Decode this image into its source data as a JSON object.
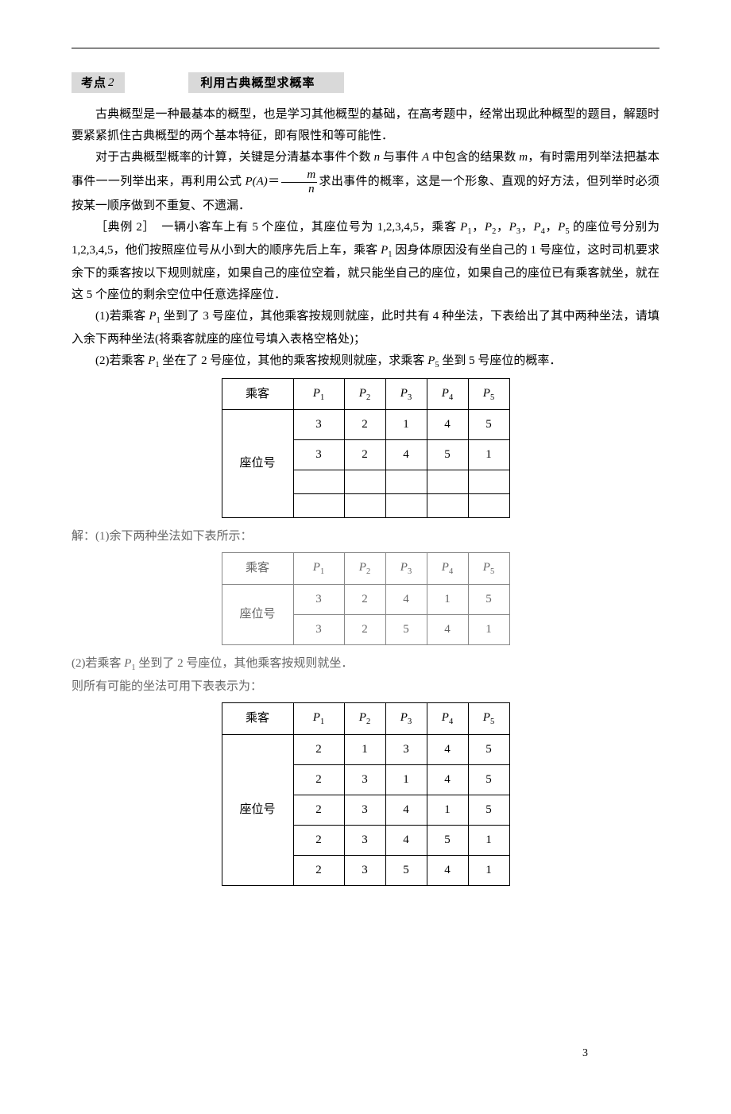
{
  "header": {
    "kd_label": "考点",
    "kd_num": "2",
    "kd_title": "利用古典概型求概率"
  },
  "paras": {
    "p1": "古典概型是一种最基本的概型，也是学习其他概型的基础，在高考题中，经常出现此种概型的题目，解题时要紧紧抓住古典概型的两个基本特征，即有限性和等可能性．",
    "p2a": "对于古典概型概率的计算，关键是分清基本事件个数 ",
    "p2b": " 与事件 ",
    "p2c": " 中包含的结果数 ",
    "p2d": "，有时需用列举法把基本事件一一列举出来，再利用公式 ",
    "p2e": "求出事件的概率，这是一个形象、直观的好方法，但列举时必须按某一顺序做到不重复、不遗漏．",
    "ex_label": "［典例 2］",
    "ex_a": "　一辆小客车上有 5 个座位，其座位号为 1,2,3,4,5，乘客 ",
    "ex_b": " 的座位号分别为 1,2,3,4,5，他们按照座位号从小到大的顺序先后上车，乘客 ",
    "ex_c": " 因身体原因没有坐自己的 1 号座位，这时司机要求余下的乘客按以下规则就座，如果自己的座位空着，就只能坐自己的座位，如果自己的座位已有乘客就坐，就在这 5 个座位的剩余空位中任意选择座位．",
    "q1": "(1)若乘客 ",
    "q1b": " 坐到了 3 号座位，其他乘客按规则就座，此时共有 4 种坐法，下表给出了其中两种坐法，请填入余下两种坐法(将乘客就座的座位号填入表格空格处)；",
    "q2": "(2)若乘客 ",
    "q2b": " 坐在了 2 号座位，其他的乘客按规则就座，求乘客 ",
    "q2c": " 坐到 5 号座位的概率．",
    "ans1": "解：(1)余下两种坐法如下表所示：",
    "ans2a": "(2)若乘客 ",
    "ans2b": " 坐到了 2 号座位，其他乘客按规则就坐．",
    "ans3": "则所有可能的坐法可用下表表示为："
  },
  "sym": {
    "n": "n",
    "A": "A",
    "m": "m",
    "PA": "P(A)",
    "P1": "P",
    "s1": "1",
    "P2": "P",
    "s2": "2",
    "P3": "P",
    "s3": "3",
    "P4": "P",
    "s4": "4",
    "P5": "P",
    "s5": "5",
    "comma": "，"
  },
  "table1": {
    "h0": "乘客",
    "h_seat": "座位号",
    "r1": [
      "3",
      "2",
      "1",
      "4",
      "5"
    ],
    "r2": [
      "3",
      "2",
      "4",
      "5",
      "1"
    ]
  },
  "table2": {
    "h0": "乘客",
    "h_seat": "座位号",
    "r1": [
      "3",
      "2",
      "4",
      "1",
      "5"
    ],
    "r2": [
      "3",
      "2",
      "5",
      "4",
      "1"
    ]
  },
  "table3": {
    "h0": "乘客",
    "h_seat": "座位号",
    "rows": [
      [
        "2",
        "1",
        "3",
        "4",
        "5"
      ],
      [
        "2",
        "3",
        "1",
        "4",
        "5"
      ],
      [
        "2",
        "3",
        "4",
        "1",
        "5"
      ],
      [
        "2",
        "3",
        "4",
        "5",
        "1"
      ],
      [
        "2",
        "3",
        "5",
        "4",
        "1"
      ]
    ]
  },
  "pagenum": "3"
}
